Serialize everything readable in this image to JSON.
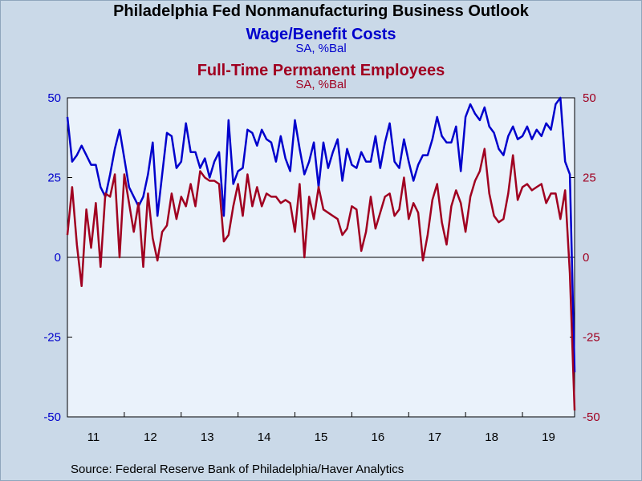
{
  "title": "Philadelphia Fed Nonmanufacturing Business Outlook",
  "source": "Source:  Federal Reserve Bank of Philadelphia/Haver Analytics",
  "colors": {
    "background": "#cad9e8",
    "plot_bg": "#eaf2fb",
    "series1": "#0000cc",
    "series2": "#a00020"
  },
  "chart_data": {
    "type": "line",
    "x_start": "2011-01",
    "x_tick_labels": [
      "11",
      "12",
      "13",
      "14",
      "15",
      "16",
      "17",
      "18",
      "19"
    ],
    "ylim": [
      -50,
      50
    ],
    "y_ticks_left": [
      "50",
      "25",
      "0",
      "-25",
      "-50"
    ],
    "y_ticks_right": [
      "50",
      "25",
      "0",
      "-25",
      "-50"
    ],
    "grid": false,
    "zero_line": true,
    "series": [
      {
        "name": "Wage/Benefit Costs",
        "unit": "SA, %Bal",
        "color": "#0000cc",
        "values": [
          44,
          30,
          32,
          35,
          32,
          29,
          29,
          22,
          19,
          26,
          34,
          40,
          31,
          22,
          19,
          16,
          19,
          26,
          36,
          13,
          26,
          39,
          38,
          28,
          30,
          42,
          33,
          33,
          28,
          31,
          25,
          30,
          33,
          13,
          43,
          23,
          27,
          28,
          40,
          39,
          35,
          40,
          37,
          36,
          30,
          38,
          31,
          27,
          43,
          34,
          26,
          30,
          36,
          22,
          36,
          28,
          33,
          37,
          24,
          34,
          29,
          28,
          33,
          30,
          30,
          38,
          28,
          36,
          42,
          30,
          28,
          37,
          30,
          24,
          29,
          32,
          32,
          37,
          44,
          38,
          36,
          36,
          41,
          27,
          44,
          48,
          45,
          43,
          47,
          41,
          39,
          34,
          32,
          38,
          41,
          37,
          38,
          41,
          37,
          40,
          38,
          42,
          40,
          48,
          50,
          30,
          26,
          -36
        ]
      },
      {
        "name": "Full-Time Permanent Employees",
        "unit": "SA, %Bal",
        "color": "#a00020",
        "values": [
          7,
          22,
          4,
          -9,
          15,
          3,
          17,
          -3,
          20,
          19,
          26,
          0,
          26,
          17,
          8,
          17,
          -3,
          20,
          6,
          -1,
          8,
          10,
          20,
          12,
          19,
          16,
          23,
          16,
          27,
          25,
          24,
          24,
          23,
          5,
          7,
          16,
          23,
          13,
          26,
          16,
          22,
          16,
          20,
          19,
          19,
          17,
          18,
          17,
          8,
          23,
          0,
          19,
          12,
          22,
          15,
          14,
          13,
          12,
          7,
          9,
          16,
          15,
          2,
          8,
          19,
          9,
          14,
          19,
          20,
          13,
          15,
          25,
          12,
          17,
          14,
          -1,
          7,
          18,
          23,
          11,
          4,
          16,
          21,
          17,
          8,
          19,
          24,
          27,
          34,
          20,
          13,
          11,
          12,
          20,
          32,
          18,
          22,
          23,
          21,
          22,
          23,
          17,
          20,
          20,
          12,
          21,
          -5,
          -48
        ]
      }
    ]
  }
}
